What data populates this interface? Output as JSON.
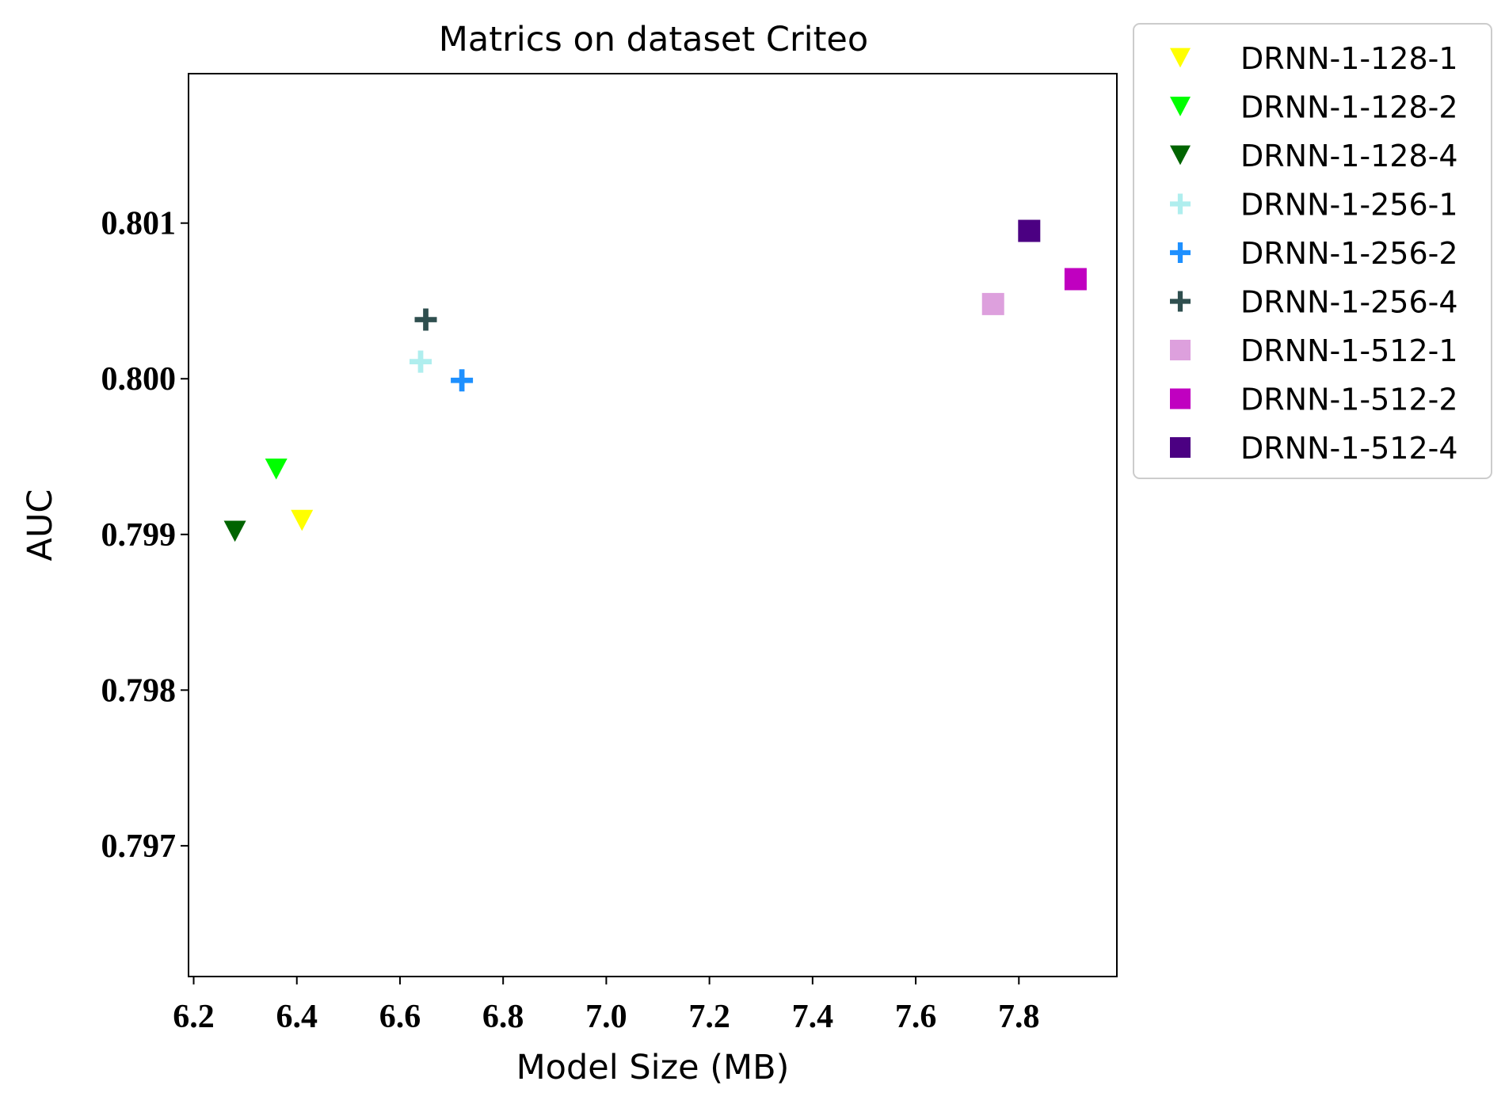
{
  "chart_data": {
    "type": "scatter",
    "title": "Matrics on dataset Criteo",
    "xlabel": "Model Size (MB)",
    "ylabel": "AUC",
    "xlim": [
      6.19,
      7.99
    ],
    "ylim": [
      0.79616,
      0.80196
    ],
    "x_ticks": [
      6.2,
      6.4,
      6.6,
      6.8,
      7.0,
      7.2,
      7.4,
      7.6,
      7.8
    ],
    "x_tick_labels": [
      "6.2",
      "6.4",
      "6.6",
      "6.8",
      "7.0",
      "7.2",
      "7.4",
      "7.6",
      "7.8"
    ],
    "y_ticks": [
      0.797,
      0.798,
      0.799,
      0.8,
      0.801
    ],
    "y_tick_labels": [
      "0.797",
      "0.798",
      "0.799",
      "0.800",
      "0.801"
    ],
    "grid": false,
    "legend_position": "outside-top-right",
    "series": [
      {
        "name": "DRNN-1-128-1",
        "marker": "triangle-down",
        "color": "#ffff00",
        "x": [
          6.41
        ],
        "y": [
          0.79909
        ]
      },
      {
        "name": "DRNN-1-128-2",
        "marker": "triangle-down",
        "color": "#00ff00",
        "x": [
          6.36
        ],
        "y": [
          0.79942
        ]
      },
      {
        "name": "DRNN-1-128-4",
        "marker": "triangle-down",
        "color": "#006400",
        "x": [
          6.28
        ],
        "y": [
          0.79902
        ]
      },
      {
        "name": "DRNN-1-256-1",
        "marker": "plus",
        "color": "#afeeee",
        "x": [
          6.64
        ],
        "y": [
          0.80011
        ]
      },
      {
        "name": "DRNN-1-256-2",
        "marker": "plus",
        "color": "#1e90ff",
        "x": [
          6.72
        ],
        "y": [
          0.79999
        ]
      },
      {
        "name": "DRNN-1-256-4",
        "marker": "plus",
        "color": "#2f4f4f",
        "x": [
          6.65
        ],
        "y": [
          0.80038
        ]
      },
      {
        "name": "DRNN-1-512-1",
        "marker": "square",
        "color": "#dda0dd",
        "x": [
          7.75
        ],
        "y": [
          0.80048
        ]
      },
      {
        "name": "DRNN-1-512-2",
        "marker": "square",
        "color": "#c000c0",
        "x": [
          7.91
        ],
        "y": [
          0.80064
        ]
      },
      {
        "name": "DRNN-1-512-4",
        "marker": "square",
        "color": "#4b0082",
        "x": [
          7.82
        ],
        "y": [
          0.80095
        ]
      }
    ]
  }
}
